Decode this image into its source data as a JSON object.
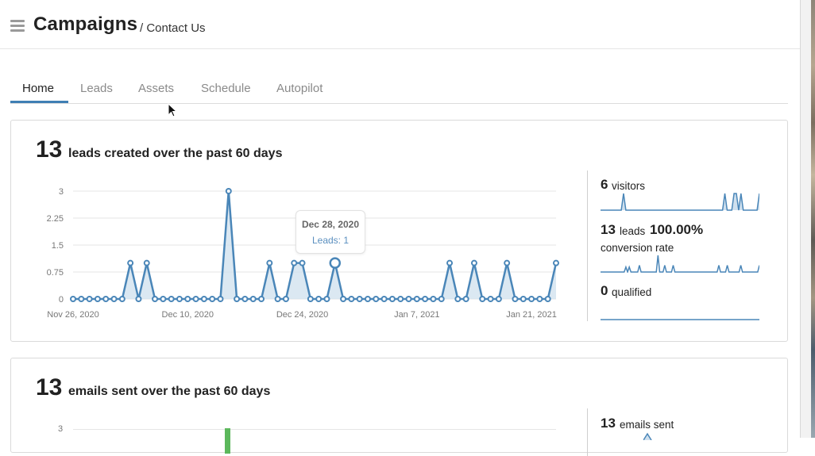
{
  "header": {
    "title": "Campaigns",
    "breadcrumb": "/ Contact Us"
  },
  "tabs": [
    {
      "label": "Home",
      "active": true
    },
    {
      "label": "Leads"
    },
    {
      "label": "Assets"
    },
    {
      "label": "Schedule"
    },
    {
      "label": "Autopilot"
    }
  ],
  "colors": {
    "accent": "#3f7fb4",
    "line": "#4a86b8",
    "fill": "#cfe0ee",
    "email_bar": "#5cb85c"
  },
  "leads_card": {
    "count": "13",
    "label": "leads created over the past 60 days",
    "tooltip": {
      "date": "Dec 28, 2020",
      "value": "Leads: 1"
    },
    "stats": {
      "visitors_num": "6",
      "visitors_label": "visitors",
      "leads_num": "13",
      "leads_label": "leads",
      "conv_num": "100.00%",
      "conv_label": "conversion rate",
      "qualified_num": "0",
      "qualified_label": "qualified"
    },
    "sparklines": {
      "visitors": [
        0,
        0,
        0,
        0,
        0,
        0,
        0,
        0,
        0,
        0,
        1,
        0,
        0,
        0,
        0,
        0,
        0,
        0,
        0,
        0,
        0,
        0,
        0,
        0,
        0,
        0,
        0,
        0,
        0,
        0,
        0,
        0,
        0,
        0,
        0,
        0,
        0,
        0,
        0,
        0,
        0,
        0,
        0,
        0,
        0,
        0,
        0,
        0,
        0,
        0,
        0,
        0,
        0,
        0,
        1,
        0,
        0,
        0,
        1,
        1,
        0,
        1,
        0,
        0,
        0,
        0,
        0,
        0,
        0,
        1
      ],
      "conversion": [
        0,
        0,
        0,
        0,
        0,
        0,
        0,
        0,
        0,
        0,
        0,
        0,
        0,
        0,
        0,
        0.3,
        0,
        0.3,
        0,
        0,
        0,
        0,
        0,
        0.4,
        0,
        0,
        0,
        0,
        0,
        0,
        0,
        0,
        0,
        0,
        1,
        0,
        0,
        0,
        0.4,
        0,
        0,
        0,
        0,
        0.4,
        0,
        0,
        0,
        0,
        0,
        0,
        0,
        0,
        0,
        0,
        0,
        0,
        0,
        0,
        0,
        0,
        0,
        0,
        0,
        0,
        0,
        0,
        0,
        0,
        0,
        0,
        0.4,
        0,
        0,
        0,
        0,
        0.4,
        0,
        0,
        0,
        0,
        0,
        0,
        0,
        0.4,
        0,
        0,
        0,
        0,
        0,
        0,
        0,
        0,
        0,
        0,
        0.4
      ],
      "qualified": [
        0,
        0,
        0,
        0,
        0,
        0,
        0,
        0,
        0,
        0,
        0,
        0,
        0,
        0,
        0,
        0,
        0,
        0,
        0,
        0
      ]
    }
  },
  "emails_card": {
    "count": "13",
    "label": "emails sent over the past 60 days",
    "y_top_tick": "3",
    "stats": {
      "sent_num": "13",
      "sent_label": "emails sent"
    }
  },
  "chart_data": {
    "type": "area",
    "series": [
      {
        "name": "Leads",
        "values": [
          0,
          0,
          0,
          0,
          0,
          0,
          0,
          1,
          0,
          1,
          0,
          0,
          0,
          0,
          0,
          0,
          0,
          0,
          0,
          3,
          0,
          0,
          0,
          0,
          1,
          0,
          0,
          1,
          1,
          0,
          0,
          0,
          1,
          0,
          0,
          0,
          0,
          0,
          0,
          0,
          0,
          0,
          0,
          0,
          0,
          0,
          1,
          0,
          0,
          1,
          0,
          0,
          0,
          1,
          0,
          0,
          0,
          0,
          0,
          1
        ]
      }
    ],
    "x_start": "2020-11-26",
    "x_ticks": [
      "Nov 26, 2020",
      "Dec 10, 2020",
      "Dec 24, 2020",
      "Jan 7, 2021",
      "Jan 21, 2021"
    ],
    "y_ticks": [
      "0",
      "0.75",
      "1.5",
      "2.25",
      "3"
    ],
    "ylim": [
      0,
      3
    ],
    "highlight": "Dec 28, 2020",
    "grid": true
  }
}
